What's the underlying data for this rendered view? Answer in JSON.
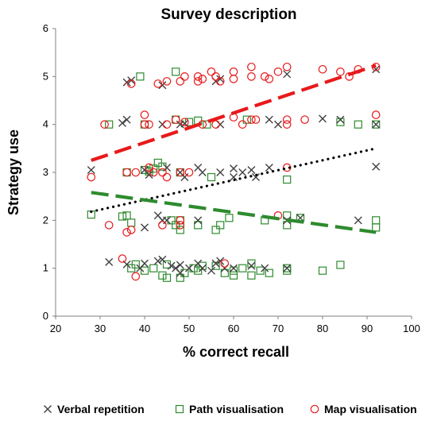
{
  "chart_data": {
    "type": "scatter",
    "title": "Survey description",
    "xlabel": "% correct recall",
    "ylabel": "Strategy use",
    "xlim": [
      20,
      100
    ],
    "ylim": [
      0,
      6
    ],
    "x_ticks": [
      "20",
      "30",
      "40",
      "50",
      "60",
      "70",
      "80",
      "90",
      "100"
    ],
    "y_ticks": [
      "0",
      "1",
      "2",
      "3",
      "4",
      "5",
      "6"
    ],
    "grid": false,
    "legend_position": "bottom",
    "series": [
      {
        "name": "Verbal repetition",
        "marker": "x",
        "color": "#404040",
        "points": [
          [
            28,
            3.05
          ],
          [
            32,
            1.13
          ],
          [
            35,
            4.03
          ],
          [
            36,
            4.88
          ],
          [
            36,
            1.08
          ],
          [
            36,
            4.1
          ],
          [
            37,
            4.92
          ],
          [
            39,
            1.0
          ],
          [
            40,
            1.1
          ],
          [
            40,
            1.85
          ],
          [
            40,
            3.05
          ],
          [
            41,
            2.95
          ],
          [
            43,
            1.15
          ],
          [
            43,
            2.1
          ],
          [
            44,
            1.18
          ],
          [
            44,
            2.0
          ],
          [
            44,
            4.0
          ],
          [
            44,
            4.82
          ],
          [
            45,
            2.0
          ],
          [
            45,
            3.1
          ],
          [
            46,
            1.05
          ],
          [
            47,
            1.0
          ],
          [
            48,
            0.9
          ],
          [
            48,
            1.07
          ],
          [
            48,
            3.0
          ],
          [
            48,
            4.0
          ],
          [
            49,
            2.9
          ],
          [
            49,
            4.02
          ],
          [
            50,
            1.0
          ],
          [
            52,
            1.1
          ],
          [
            52,
            2.0
          ],
          [
            52,
            3.1
          ],
          [
            53,
            1.0
          ],
          [
            53,
            3.0
          ],
          [
            55,
            0.95
          ],
          [
            56,
            4.9
          ],
          [
            56,
            1.1
          ],
          [
            57,
            1.15
          ],
          [
            57,
            3.0
          ],
          [
            57,
            4.0
          ],
          [
            57,
            4.95
          ],
          [
            58,
            1.0
          ],
          [
            60,
            3.08
          ],
          [
            60,
            1.0
          ],
          [
            60,
            2.9
          ],
          [
            62,
            3.0
          ],
          [
            64,
            3.05
          ],
          [
            64,
            1.05
          ],
          [
            65,
            2.9
          ],
          [
            67,
            1.0
          ],
          [
            68,
            3.1
          ],
          [
            68,
            4.1
          ],
          [
            70,
            4.0
          ],
          [
            72,
            5.05
          ],
          [
            72,
            2.0
          ],
          [
            72,
            1.0
          ],
          [
            75,
            2.05
          ],
          [
            80,
            4.12
          ],
          [
            84,
            4.1
          ],
          [
            88,
            2.0
          ],
          [
            92,
            5.15
          ],
          [
            92,
            4.0
          ],
          [
            92,
            3.12
          ]
        ]
      },
      {
        "name": "Path visualisation",
        "marker": "square",
        "color": "#2e8b2e",
        "points": [
          [
            28,
            2.12
          ],
          [
            32,
            4.0
          ],
          [
            35,
            2.08
          ],
          [
            36,
            2.1
          ],
          [
            36,
            3.0
          ],
          [
            37,
            1.0
          ],
          [
            37,
            1.95
          ],
          [
            38,
            1.08
          ],
          [
            39,
            5.0
          ],
          [
            40,
            0.95
          ],
          [
            40,
            3.05
          ],
          [
            40,
            4.0
          ],
          [
            41,
            3.02
          ],
          [
            42,
            3.08
          ],
          [
            42,
            1.0
          ],
          [
            43,
            3.2
          ],
          [
            44,
            3.12
          ],
          [
            44,
            0.85
          ],
          [
            45,
            0.8
          ],
          [
            45,
            1.08
          ],
          [
            46,
            2.0
          ],
          [
            47,
            1.9
          ],
          [
            47,
            4.1
          ],
          [
            47,
            5.1
          ],
          [
            48,
            3.0
          ],
          [
            48,
            2.0
          ],
          [
            48,
            0.8
          ],
          [
            48,
            1.8
          ],
          [
            49,
            0.9
          ],
          [
            50,
            4.05
          ],
          [
            51,
            1.0
          ],
          [
            52,
            1.9
          ],
          [
            52,
            4.08
          ],
          [
            52,
            0.95
          ],
          [
            53,
            1.05
          ],
          [
            54,
            4.0
          ],
          [
            55,
            2.9
          ],
          [
            56,
            1.8
          ],
          [
            56,
            1.05
          ],
          [
            57,
            1.9
          ],
          [
            58,
            0.9
          ],
          [
            59,
            2.05
          ],
          [
            60,
            0.95
          ],
          [
            60,
            0.85
          ],
          [
            62,
            1.0
          ],
          [
            63,
            4.1
          ],
          [
            64,
            1.1
          ],
          [
            64,
            0.85
          ],
          [
            66,
            0.95
          ],
          [
            67,
            2.0
          ],
          [
            68,
            0.9
          ],
          [
            72,
            1.0
          ],
          [
            72,
            2.1
          ],
          [
            72,
            1.9
          ],
          [
            72,
            2.85
          ],
          [
            72,
            0.95
          ],
          [
            75,
            2.05
          ],
          [
            80,
            0.95
          ],
          [
            84,
            1.07
          ],
          [
            84,
            4.05
          ],
          [
            88,
            4.0
          ],
          [
            92,
            2.0
          ],
          [
            92,
            1.85
          ],
          [
            92,
            4.0
          ]
        ]
      },
      {
        "name": "Map visualisation",
        "marker": "circle",
        "color": "#e8191b",
        "points": [
          [
            28,
            2.9
          ],
          [
            31,
            4.0
          ],
          [
            32,
            1.9
          ],
          [
            35,
            1.2
          ],
          [
            36,
            1.75
          ],
          [
            36,
            3.0
          ],
          [
            37,
            4.85
          ],
          [
            37,
            1.8
          ],
          [
            38,
            0.83
          ],
          [
            38,
            3.0
          ],
          [
            40,
            4.0
          ],
          [
            40,
            4.2
          ],
          [
            41,
            3.1
          ],
          [
            41,
            4.0
          ],
          [
            42,
            3.0
          ],
          [
            43,
            4.85
          ],
          [
            44,
            3.0
          ],
          [
            44,
            1.9
          ],
          [
            45,
            4.0
          ],
          [
            45,
            2.9
          ],
          [
            45,
            4.9
          ],
          [
            47,
            4.1
          ],
          [
            48,
            3.0
          ],
          [
            48,
            1.9
          ],
          [
            48,
            4.9
          ],
          [
            48,
            2.0
          ],
          [
            49,
            4.05
          ],
          [
            49,
            5.0
          ],
          [
            50,
            3.0
          ],
          [
            52,
            5.0
          ],
          [
            52,
            4.9
          ],
          [
            53,
            4.0
          ],
          [
            53,
            4.95
          ],
          [
            55,
            5.1
          ],
          [
            56,
            4.0
          ],
          [
            56,
            5.0
          ],
          [
            57,
            4.9
          ],
          [
            58,
            1.1
          ],
          [
            60,
            4.95
          ],
          [
            60,
            5.1
          ],
          [
            60,
            4.15
          ],
          [
            62,
            4.0
          ],
          [
            64,
            4.1
          ],
          [
            64,
            5.0
          ],
          [
            64,
            5.2
          ],
          [
            65,
            4.1
          ],
          [
            67,
            5.0
          ],
          [
            68,
            4.95
          ],
          [
            70,
            5.1
          ],
          [
            70,
            2.1
          ],
          [
            72,
            4.1
          ],
          [
            72,
            4.0
          ],
          [
            72,
            5.2
          ],
          [
            72,
            3.1
          ],
          [
            76,
            4.1
          ],
          [
            80,
            5.15
          ],
          [
            84,
            5.1
          ],
          [
            86,
            5.0
          ],
          [
            88,
            5.15
          ],
          [
            92,
            4.2
          ],
          [
            92,
            5.2
          ]
        ]
      }
    ],
    "trendlines": [
      {
        "series": "Map visualisation",
        "style": "dashed",
        "color": "#e8191b",
        "from": [
          28,
          3.25
        ],
        "to": [
          92,
          5.23
        ]
      },
      {
        "series": "Verbal repetition",
        "style": "dotted",
        "color": "#000000",
        "from": [
          28,
          2.18
        ],
        "to": [
          92,
          3.5
        ]
      },
      {
        "series": "Path visualisation",
        "style": "dashed",
        "color": "#2e8b2e",
        "from": [
          28,
          2.58
        ],
        "to": [
          92,
          1.75
        ]
      }
    ]
  }
}
